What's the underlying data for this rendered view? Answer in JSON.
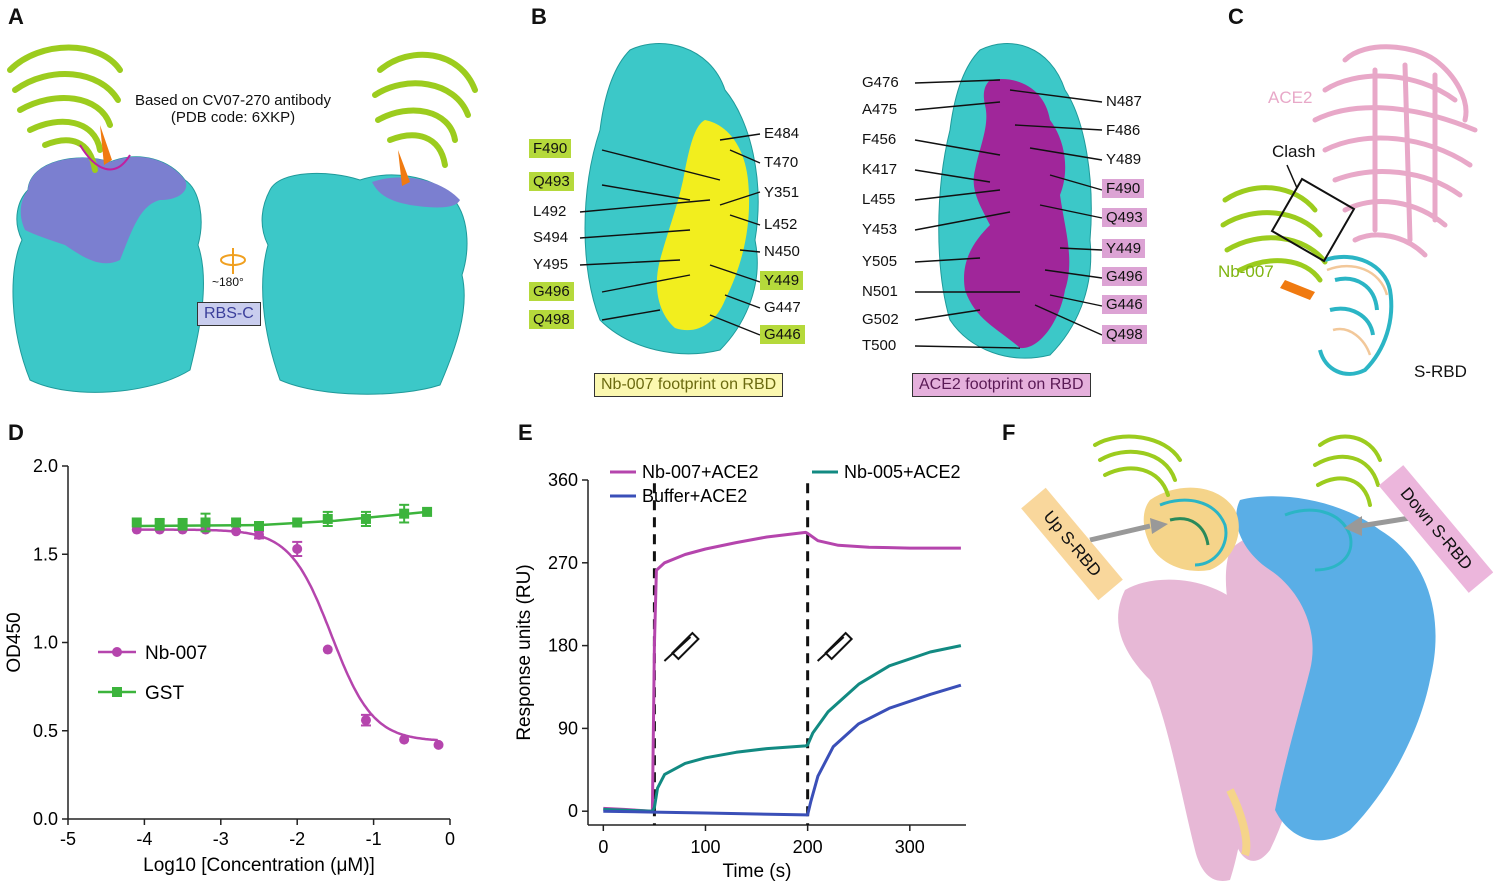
{
  "panels": {
    "A": {
      "letter": "A",
      "note_line1": "Based on CV07-270 antibody",
      "note_line2": "(PDB code: 6XKP)",
      "rotation": "~180°",
      "epitope_label": "RBS-C"
    },
    "B": {
      "letter": "B",
      "left_labels_left": [
        {
          "text": "F490",
          "highlight": true
        },
        {
          "text": "Q493",
          "highlight": true
        },
        {
          "text": "L492",
          "highlight": false
        },
        {
          "text": "S494",
          "highlight": false
        },
        {
          "text": "Y495",
          "highlight": false
        },
        {
          "text": "G496",
          "highlight": true
        },
        {
          "text": "Q498",
          "highlight": true
        }
      ],
      "left_labels_right": [
        {
          "text": "E484",
          "highlight": false
        },
        {
          "text": "T470",
          "highlight": false
        },
        {
          "text": "Y351",
          "highlight": false
        },
        {
          "text": "L452",
          "highlight": false
        },
        {
          "text": "N450",
          "highlight": false
        },
        {
          "text": "Y449",
          "highlight": true
        },
        {
          "text": "G447",
          "highlight": false
        },
        {
          "text": "G446",
          "highlight": true
        }
      ],
      "right_labels_left": [
        {
          "text": "G476",
          "highlight": false
        },
        {
          "text": "A475",
          "highlight": false
        },
        {
          "text": "F456",
          "highlight": false
        },
        {
          "text": "K417",
          "highlight": false
        },
        {
          "text": "L455",
          "highlight": false
        },
        {
          "text": "Y453",
          "highlight": false
        },
        {
          "text": "Y505",
          "highlight": false
        },
        {
          "text": "N501",
          "highlight": false
        },
        {
          "text": "G502",
          "highlight": false
        },
        {
          "text": "T500",
          "highlight": false
        }
      ],
      "right_labels_right": [
        {
          "text": "N487",
          "highlight": false
        },
        {
          "text": "F486",
          "highlight": false
        },
        {
          "text": "Y489",
          "highlight": false
        },
        {
          "text": "F490",
          "highlight": true
        },
        {
          "text": "Q493",
          "highlight": true
        },
        {
          "text": "Y449",
          "highlight": true
        },
        {
          "text": "G496",
          "highlight": true
        },
        {
          "text": "G446",
          "highlight": true
        },
        {
          "text": "Q498",
          "highlight": true
        }
      ],
      "footprint_left": "Nb-007 footprint on RBD",
      "footprint_right": "ACE2 footprint on RBD"
    },
    "C": {
      "letter": "C",
      "ace2": "ACE2",
      "clash": "Clash",
      "nb": "Nb-007",
      "srbd": "S-RBD"
    },
    "D": {
      "letter": "D"
    },
    "E": {
      "letter": "E"
    },
    "F": {
      "letter": "F",
      "up_label": "Up S-RBD",
      "down_label": "Down S-RBD"
    }
  },
  "colors": {
    "cyan_surface": "#3cc8c8",
    "slate_blue": "#7b7fd0",
    "yellow_footprint": "#f2ee1e",
    "magenta_footprint": "#a0269a",
    "nb_green": "#9ccc1e",
    "ace2_pink": "#e8a8c8",
    "pink_surface": "#e7b8d6",
    "blue_surface": "#5aaee6",
    "wheat": "#f5d48a",
    "label_green_bg": "#b5d93b",
    "label_pink_bg": "#dca3d4",
    "footprint_yellow_bg": "#fbf8b0",
    "footprint_pink_bg": "#e5b0dc",
    "rbsc_bg": "#c9cdee",
    "curve_magenta": "#b545ad",
    "curve_green": "#3cb43c",
    "curve_teal": "#128a82",
    "curve_blue": "#3a4fb8"
  },
  "chart_data": [
    {
      "type": "scatter",
      "panel": "D",
      "xlabel": "Log10 [Concentration (μM)]",
      "ylabel": "OD450",
      "xlim": [
        -5,
        0
      ],
      "ylim": [
        0.0,
        2.0
      ],
      "xticks": [
        "-5",
        "-4",
        "-3",
        "-2",
        "-1",
        "0"
      ],
      "yticks": [
        "0.0",
        "0.5",
        "1.0",
        "1.5",
        "2.0"
      ],
      "legend_position": "middle-left",
      "series": [
        {
          "name": "Nb-007",
          "marker": "circle",
          "x": [
            -4.1,
            -3.8,
            -3.5,
            -3.2,
            -2.8,
            -2.5,
            -2.0,
            -1.6,
            -1.1,
            -0.6,
            -0.15
          ],
          "y": [
            1.64,
            1.64,
            1.64,
            1.64,
            1.63,
            1.61,
            1.53,
            0.96,
            0.56,
            0.45,
            0.42
          ],
          "err": [
            0.0,
            0.0,
            0.0,
            0.0,
            0.0,
            0.02,
            0.04,
            0.0,
            0.03,
            0.0,
            0.0
          ],
          "fit": {
            "top": 1.64,
            "bottom": 0.44,
            "logIC50": -1.55,
            "hill": 1.6
          }
        },
        {
          "name": "GST",
          "marker": "square",
          "x": [
            -4.1,
            -3.8,
            -3.5,
            -3.2,
            -2.8,
            -2.5,
            -2.0,
            -1.6,
            -1.1,
            -0.6,
            -0.3
          ],
          "y": [
            1.68,
            1.67,
            1.67,
            1.68,
            1.68,
            1.66,
            1.68,
            1.7,
            1.7,
            1.73,
            1.74
          ],
          "err": [
            0.0,
            0.03,
            0.03,
            0.05,
            0.0,
            0.02,
            0.0,
            0.04,
            0.04,
            0.05,
            0.0
          ],
          "fit_line": [
            [
              -4.1,
              1.66
            ],
            [
              -2.5,
              1.665
            ],
            [
              -1.5,
              1.69
            ],
            [
              -0.3,
              1.74
            ]
          ]
        }
      ]
    },
    {
      "type": "line",
      "panel": "E",
      "xlabel": "Time (s)",
      "ylabel": "Response units (RU)",
      "xlim": [
        -15,
        355
      ],
      "ylim": [
        -15,
        360
      ],
      "xticks": [
        "0",
        "100",
        "200",
        "300"
      ],
      "yticks": [
        "0",
        "90",
        "180",
        "270",
        "360"
      ],
      "injections": [
        50,
        200
      ],
      "legend_position": "top",
      "series": [
        {
          "name": "Nb-007+ACE2",
          "x": [
            0,
            20,
            48,
            50,
            52,
            60,
            80,
            100,
            130,
            160,
            198,
            200,
            210,
            230,
            260,
            300,
            350
          ],
          "y": [
            3,
            2,
            0,
            180,
            262,
            270,
            279,
            285,
            292,
            298,
            303,
            302,
            294,
            289,
            287,
            286,
            286
          ]
        },
        {
          "name": "Nb-005+ACE2",
          "x": [
            0,
            48,
            50,
            53,
            60,
            80,
            100,
            130,
            160,
            198,
            200,
            205,
            220,
            250,
            280,
            320,
            350
          ],
          "y": [
            2,
            0,
            4,
            25,
            40,
            52,
            58,
            64,
            68,
            71,
            72,
            85,
            108,
            138,
            158,
            173,
            180
          ]
        },
        {
          "name": "Buffer+ACE2",
          "x": [
            0,
            50,
            100,
            150,
            198,
            200,
            203,
            210,
            225,
            250,
            280,
            320,
            350
          ],
          "y": [
            0,
            -1,
            -2,
            -3,
            -4,
            -4,
            10,
            38,
            70,
            95,
            112,
            127,
            137
          ]
        }
      ]
    }
  ]
}
